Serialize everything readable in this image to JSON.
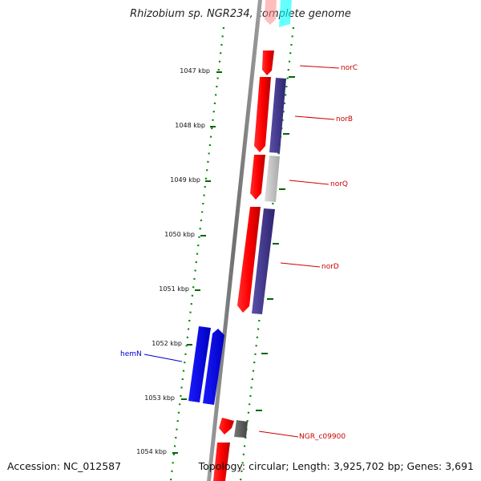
{
  "title": "Rhizobium sp. NGR234, complete genome",
  "footer": {
    "accession": "Accession: NC_012587",
    "topology": "Topology: circular; Length: 3,925,702 bp; Genes: 3,691"
  },
  "ticks": [
    "1047 kbp",
    "1048 kbp",
    "1049 kbp",
    "1050 kbp",
    "1051 kbp",
    "1052 kbp",
    "1053 kbp",
    "1054 kbp"
  ],
  "gene_labels": [
    {
      "text": "norC",
      "color": "#cc0000"
    },
    {
      "text": "norB",
      "color": "#cc0000"
    },
    {
      "text": "norQ",
      "color": "#cc0000"
    },
    {
      "text": "norD",
      "color": "#cc0000"
    },
    {
      "text": "hemN",
      "color": "#0000cc"
    },
    {
      "text": "NGR_c09900",
      "color": "#cc0000"
    }
  ],
  "colors": {
    "red_gene": "#ff0000",
    "navy_gene": "#3d3288",
    "blue_gene": "#0000ff",
    "grey_gene": "#c8c8c8",
    "dark_grey_gene": "#555555",
    "cyan_gene": "#00ffff",
    "tick_green": "#006600",
    "backbone": "#808080"
  }
}
